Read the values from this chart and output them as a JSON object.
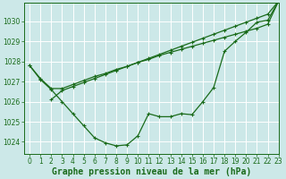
{
  "bg_color": "#cce8e8",
  "grid_color": "#b0d4d4",
  "line_color": "#1a6b1a",
  "xlabel": "Graphe pression niveau de la mer (hPa)",
  "xlabel_color": "#1a6b1a",
  "ylim": [
    1023.4,
    1030.9
  ],
  "xlim": [
    -0.5,
    23
  ],
  "yticks": [
    1024,
    1025,
    1026,
    1027,
    1028,
    1029,
    1030
  ],
  "xticks": [
    0,
    1,
    2,
    3,
    4,
    5,
    6,
    7,
    8,
    9,
    10,
    11,
    12,
    13,
    14,
    15,
    16,
    17,
    18,
    19,
    20,
    21,
    22,
    23
  ],
  "line1_x": [
    0,
    1,
    2,
    3,
    4,
    5,
    6,
    7,
    8,
    9,
    10,
    11,
    12,
    13,
    14,
    15,
    16,
    17,
    18,
    19,
    20,
    21,
    22,
    23
  ],
  "line1_y": [
    1027.8,
    1027.1,
    1026.6,
    1026.0,
    1025.4,
    1024.8,
    1024.2,
    1023.95,
    1023.8,
    1023.85,
    1024.3,
    1025.4,
    1025.25,
    1025.25,
    1025.4,
    1025.35,
    1026.0,
    1026.7,
    1028.5,
    1029.0,
    1029.45,
    1029.95,
    1030.05,
    1031.0
  ],
  "line2_x": [
    0,
    1,
    2,
    3,
    4,
    5,
    6,
    7,
    8,
    9,
    10,
    11,
    12,
    13,
    14,
    15,
    16,
    17,
    18,
    19,
    20,
    21,
    22,
    23
  ],
  "line2_y": [
    1027.8,
    1027.15,
    1026.65,
    1026.65,
    1026.85,
    1027.05,
    1027.25,
    1027.4,
    1027.6,
    1027.75,
    1027.95,
    1028.1,
    1028.3,
    1028.45,
    1028.6,
    1028.75,
    1028.9,
    1029.05,
    1029.2,
    1029.35,
    1029.5,
    1029.65,
    1029.85,
    1031.0
  ],
  "line3_x": [
    2,
    3,
    4,
    5,
    6,
    7,
    8,
    9,
    10,
    11,
    12,
    13,
    14,
    15,
    16,
    17,
    18,
    19,
    20,
    21,
    22,
    23
  ],
  "line3_y": [
    1026.1,
    1026.55,
    1026.75,
    1026.95,
    1027.15,
    1027.35,
    1027.55,
    1027.75,
    1027.95,
    1028.15,
    1028.35,
    1028.55,
    1028.75,
    1028.95,
    1029.15,
    1029.35,
    1029.55,
    1029.75,
    1029.95,
    1030.15,
    1030.35,
    1031.0
  ],
  "marker": "+",
  "markersize": 3.5,
  "linewidth": 0.9,
  "tick_fontsize": 5.5,
  "xlabel_fontsize": 7,
  "xlabel_fontweight": "bold"
}
